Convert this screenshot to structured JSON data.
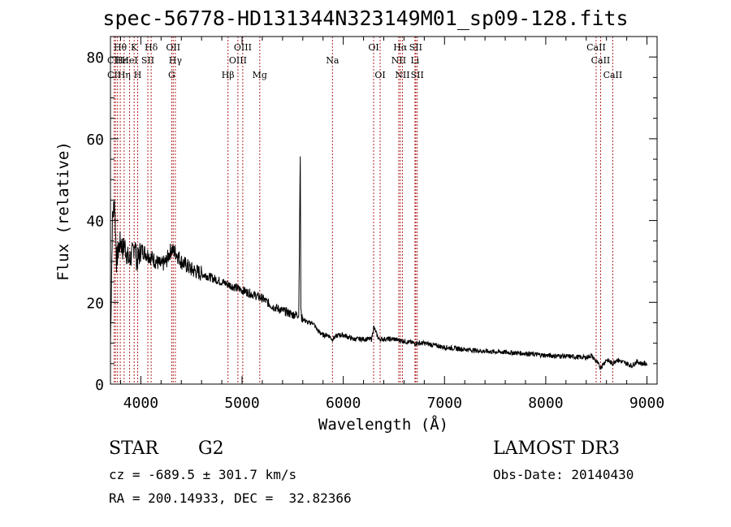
{
  "chart_data": {
    "type": "line",
    "title": "spec-56778-HD131344N323149M01_sp09-128.fits",
    "xlabel": "Wavelength (Å)",
    "ylabel": "Flux (relative)",
    "xlim": [
      3700,
      9100
    ],
    "ylim": [
      0,
      85
    ],
    "xticks": [
      4000,
      5000,
      6000,
      7000,
      8000,
      9000
    ],
    "yticks": [
      0,
      20,
      40,
      60,
      80
    ],
    "series": [
      {
        "name": "flux",
        "x": [
          3700,
          3720,
          3740,
          3760,
          3780,
          3800,
          3820,
          3840,
          3860,
          3880,
          3900,
          3920,
          3940,
          3960,
          3980,
          4000,
          4050,
          4100,
          4150,
          4200,
          4250,
          4300,
          4350,
          4400,
          4450,
          4500,
          4600,
          4700,
          4800,
          4900,
          5000,
          5100,
          5200,
          5300,
          5400,
          5500,
          5560,
          5575,
          5578,
          5581,
          5590,
          5600,
          5650,
          5700,
          5750,
          5800,
          5850,
          5890,
          5950,
          6000,
          6100,
          6200,
          6280,
          6300,
          6350,
          6400,
          6500,
          6600,
          6700,
          6800,
          6900,
          7000,
          7200,
          7400,
          7600,
          7800,
          8000,
          8200,
          8400,
          8450,
          8500,
          8542,
          8600,
          8662,
          8700,
          8800,
          8850,
          8900,
          8950,
          9000
        ],
        "y": [
          10,
          40,
          45,
          30,
          33,
          35,
          33,
          34,
          32,
          30,
          31,
          32,
          35,
          30,
          31,
          33,
          32,
          31,
          30,
          29,
          30,
          33,
          32,
          30,
          29,
          28,
          27,
          26,
          25,
          24,
          23,
          22,
          21,
          19,
          18,
          17,
          17,
          56,
          37,
          18,
          16,
          16,
          15,
          15,
          13,
          12,
          12,
          11,
          12,
          12,
          11,
          11,
          11,
          14,
          11,
          11,
          11,
          10.5,
          10,
          10,
          9.5,
          9,
          8.5,
          8,
          7.8,
          7.5,
          7,
          6.8,
          6.5,
          7,
          5.5,
          4,
          6,
          5,
          6,
          5,
          4.5,
          5.5,
          5,
          5
        ]
      }
    ],
    "line_labels": [
      {
        "label": "Hθ",
        "wavelength": 3797,
        "row": 1
      },
      {
        "label": "CII",
        "wavelength": 3737,
        "row": 2
      },
      {
        "label": "CII",
        "wavelength": 3737,
        "row": 3
      },
      {
        "label": "Hε",
        "wavelength": 3810,
        "row": 2
      },
      {
        "label": "Hη",
        "wavelength": 3835,
        "row": 3
      },
      {
        "label": "K",
        "wavelength": 3934,
        "row": 1
      },
      {
        "label": "HeI",
        "wavelength": 3889,
        "row": 2
      },
      {
        "label": "SII",
        "wavelength": 4069,
        "row": 2
      },
      {
        "label": "H",
        "wavelength": 3969,
        "row": 3
      },
      {
        "label": "Hδ",
        "wavelength": 4102,
        "row": 1
      },
      {
        "label": "OII",
        "wavelength": 4320,
        "row": 1
      },
      {
        "label": "Hγ",
        "wavelength": 4341,
        "row": 2
      },
      {
        "label": "G",
        "wavelength": 4305,
        "row": 3
      },
      {
        "label": "OIII",
        "wavelength": 5007,
        "row": 1
      },
      {
        "label": "OIII",
        "wavelength": 4959,
        "row": 2
      },
      {
        "label": "Hβ",
        "wavelength": 4861,
        "row": 3
      },
      {
        "label": "Mg",
        "wavelength": 5175,
        "row": 3
      },
      {
        "label": "Na",
        "wavelength": 5893,
        "row": 2
      },
      {
        "label": "OI",
        "wavelength": 6300,
        "row": 1
      },
      {
        "label": "OI",
        "wavelength": 6364,
        "row": 3
      },
      {
        "label": "Hα",
        "wavelength": 6563,
        "row": 1
      },
      {
        "label": "SII",
        "wavelength": 6716,
        "row": 1
      },
      {
        "label": "NII",
        "wavelength": 6548,
        "row": 2
      },
      {
        "label": "Li",
        "wavelength": 6708,
        "row": 2
      },
      {
        "label": "NII",
        "wavelength": 6584,
        "row": 3
      },
      {
        "label": "SII",
        "wavelength": 6731,
        "row": 3
      },
      {
        "label": "CaII",
        "wavelength": 8498,
        "row": 1
      },
      {
        "label": "CaII",
        "wavelength": 8542,
        "row": 2
      },
      {
        "label": "CaII",
        "wavelength": 8662,
        "row": 3
      }
    ],
    "marker_lines": [
      3737,
      3750,
      3770,
      3797,
      3835,
      3889,
      3934,
      3969,
      4069,
      4102,
      4305,
      4320,
      4341,
      4861,
      4959,
      5007,
      5175,
      5893,
      6300,
      6364,
      6548,
      6563,
      6584,
      6708,
      6716,
      6731,
      8498,
      8542,
      8662
    ]
  },
  "info": {
    "object_type": "STAR",
    "subclass": "G2",
    "survey": "LAMOST DR3",
    "cz": "cz = -689.5 ± 301.7 km/s",
    "obs_date": "Obs-Date: 20140430",
    "coords": "RA = 200.14933, DEC =  32.82366"
  }
}
